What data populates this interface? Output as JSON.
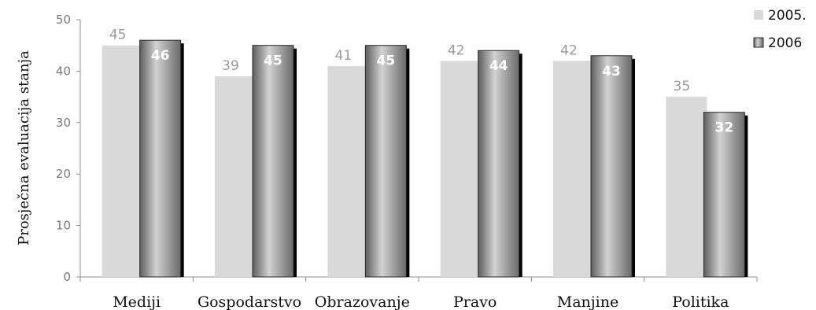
{
  "chart_data": {
    "type": "bar",
    "categories": [
      "Mediji",
      "Gospodarstvo",
      "Obrazovanje",
      "Pravo",
      "Manjine",
      "Politika"
    ],
    "series": [
      {
        "name": "2005.",
        "values": [
          45,
          39,
          41,
          42,
          42,
          35
        ],
        "color": "#d9d9d9"
      },
      {
        "name": "2006",
        "values": [
          46,
          45,
          45,
          44,
          43,
          32
        ],
        "color": "#8c8c8c"
      }
    ],
    "xlabel": "",
    "ylabel": "Prosječna evaluacija stanja",
    "ylim": [
      0,
      50
    ],
    "yticks": [
      0,
      10,
      20,
      30,
      40,
      50
    ],
    "grid": false,
    "legend_position": "top-right"
  }
}
